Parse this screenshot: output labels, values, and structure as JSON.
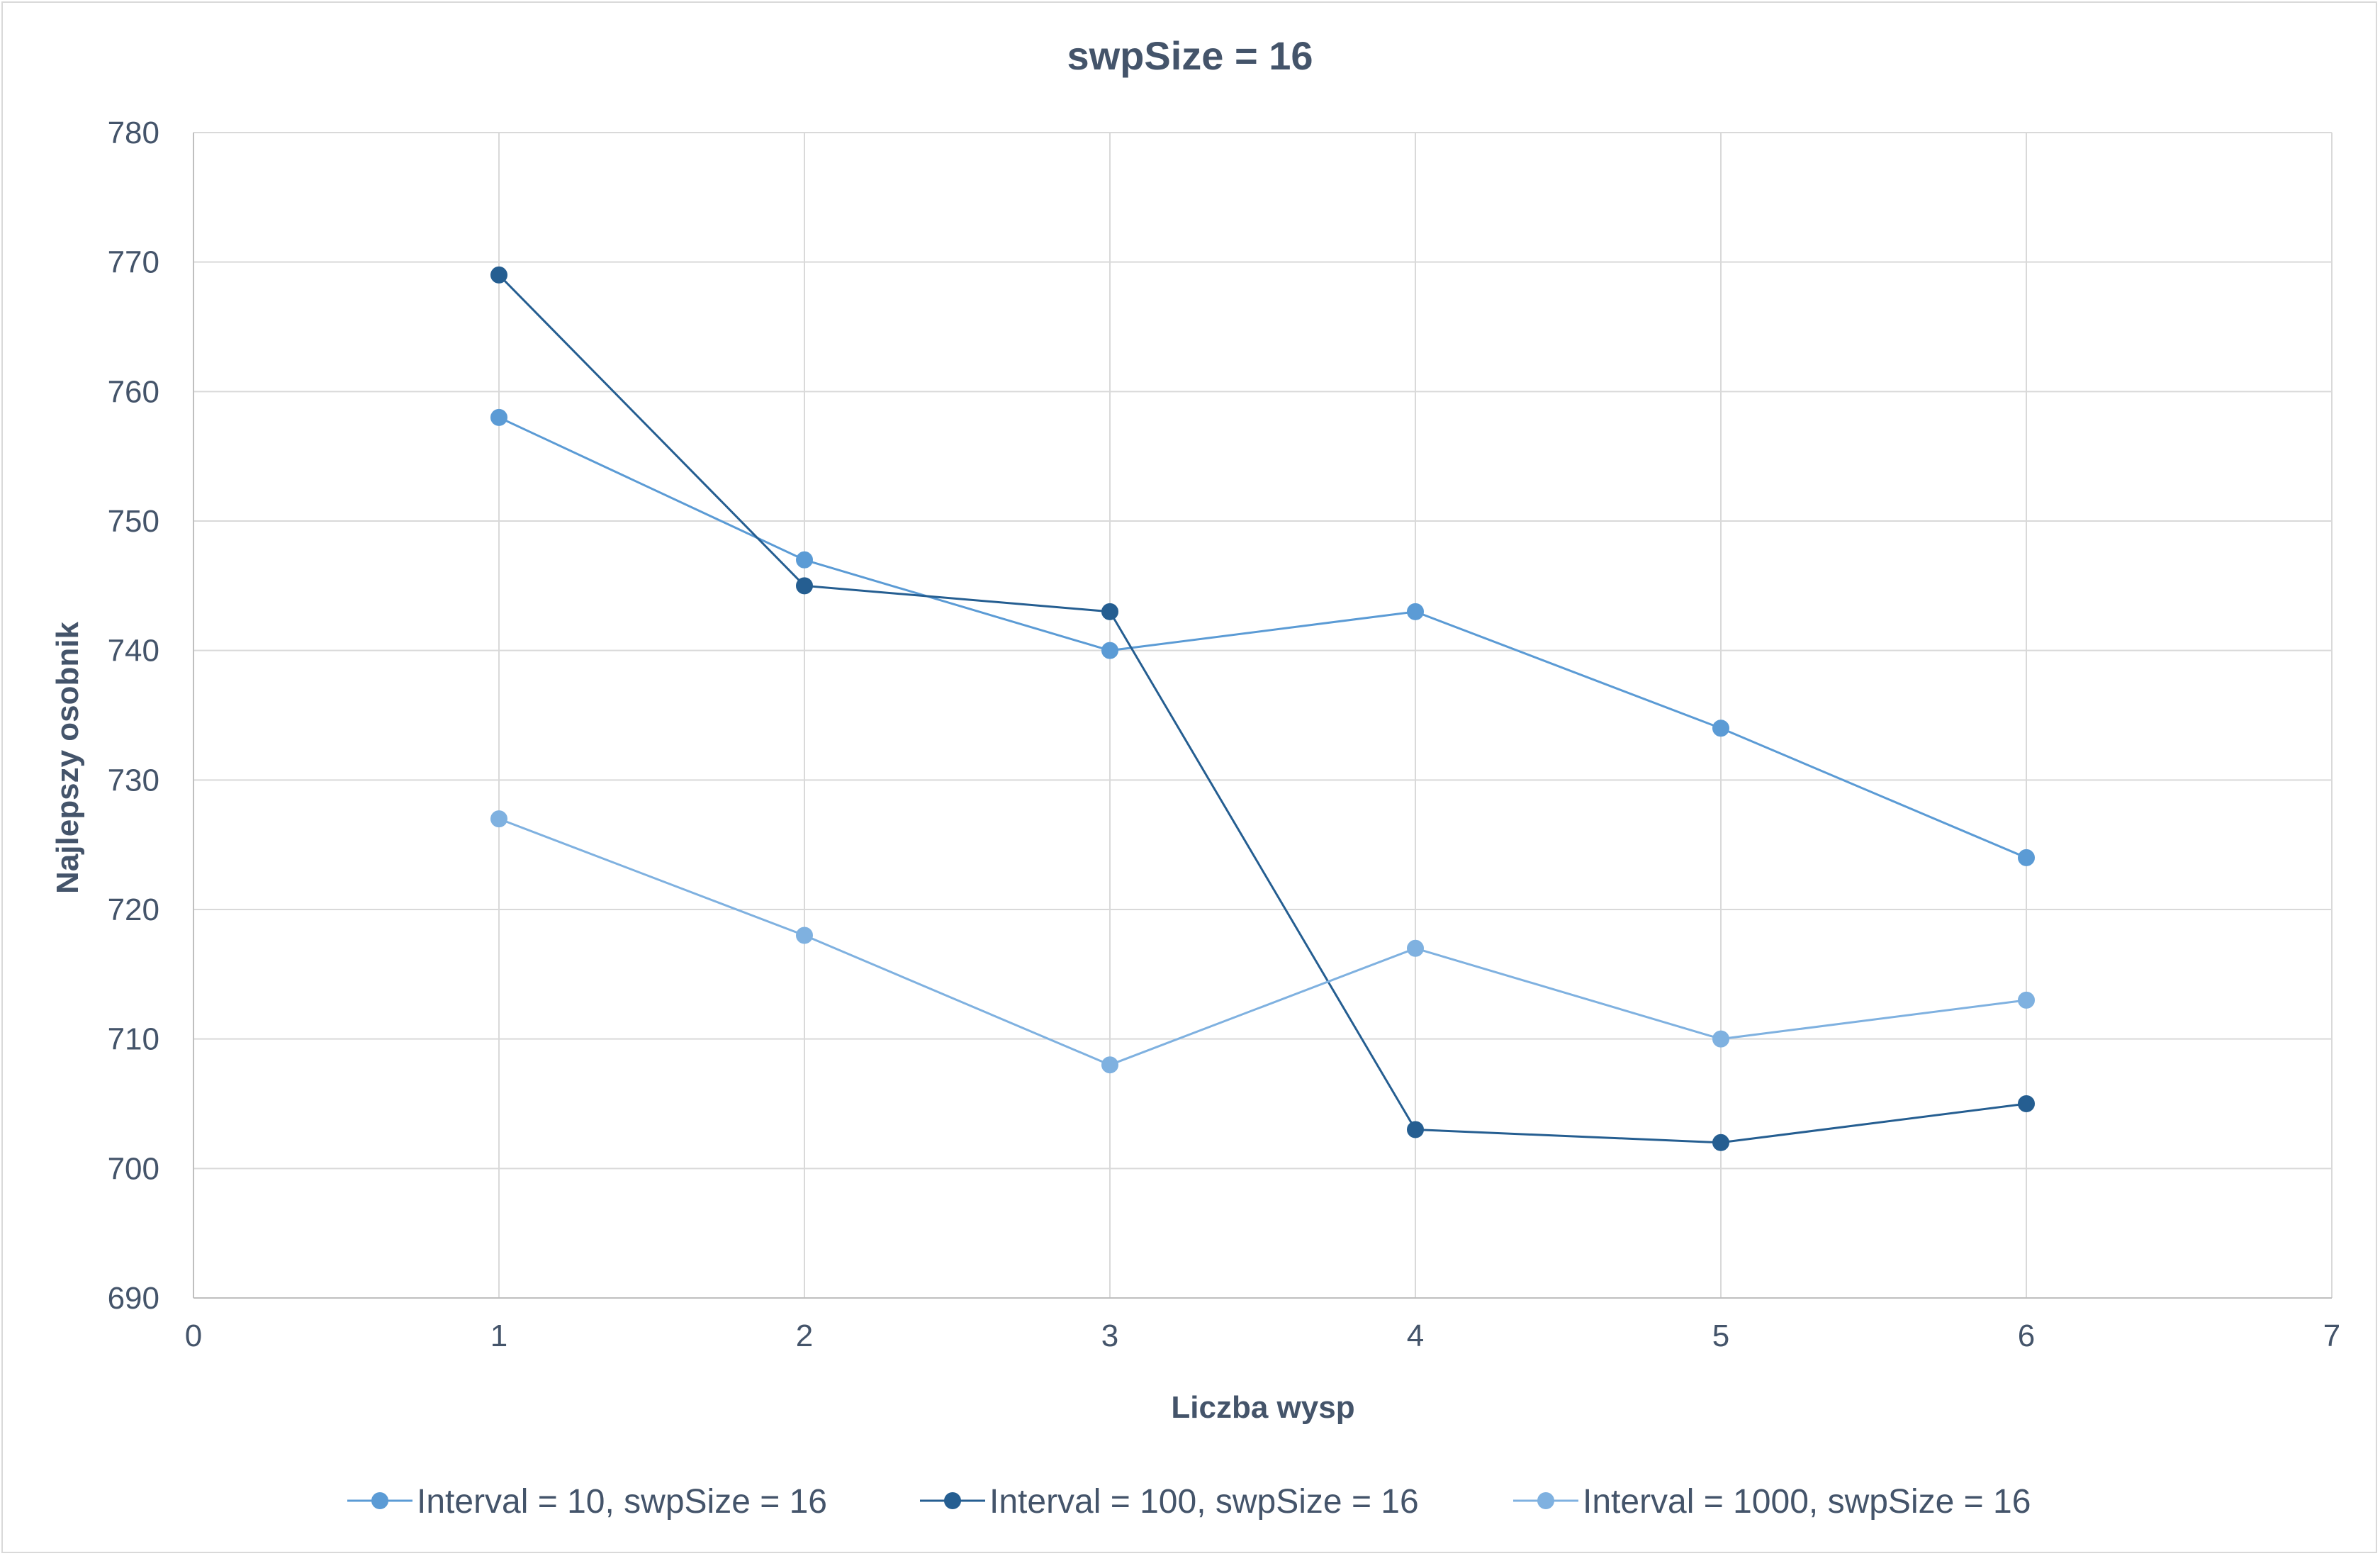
{
  "chart_data": {
    "type": "line",
    "title": "swpSize = 16",
    "xlabel": "Liczba wysp",
    "ylabel": "Najlepszy osobnik",
    "xlim": [
      0,
      7
    ],
    "ylim": [
      690,
      780
    ],
    "x_ticks": [
      "0",
      "1",
      "2",
      "3",
      "4",
      "5",
      "6",
      "7"
    ],
    "y_ticks": [
      "690",
      "700",
      "710",
      "720",
      "730",
      "740",
      "750",
      "760",
      "770",
      "780"
    ],
    "grid": true,
    "legend_position": "bottom",
    "x": [
      1,
      2,
      3,
      4,
      5,
      6
    ],
    "series": [
      {
        "name": "Interval = 10, swpSize = 16",
        "color": "#5b9bd5",
        "values": [
          758,
          747,
          740,
          743,
          734,
          724
        ]
      },
      {
        "name": "Interval = 100, swpSize = 16",
        "color": "#255e91",
        "values": [
          769,
          745,
          743,
          703,
          702,
          705
        ]
      },
      {
        "name": "Interval = 1000, swpSize = 16",
        "color": "#7fb1e0",
        "values": [
          727,
          718,
          708,
          717,
          710,
          713
        ]
      }
    ]
  }
}
